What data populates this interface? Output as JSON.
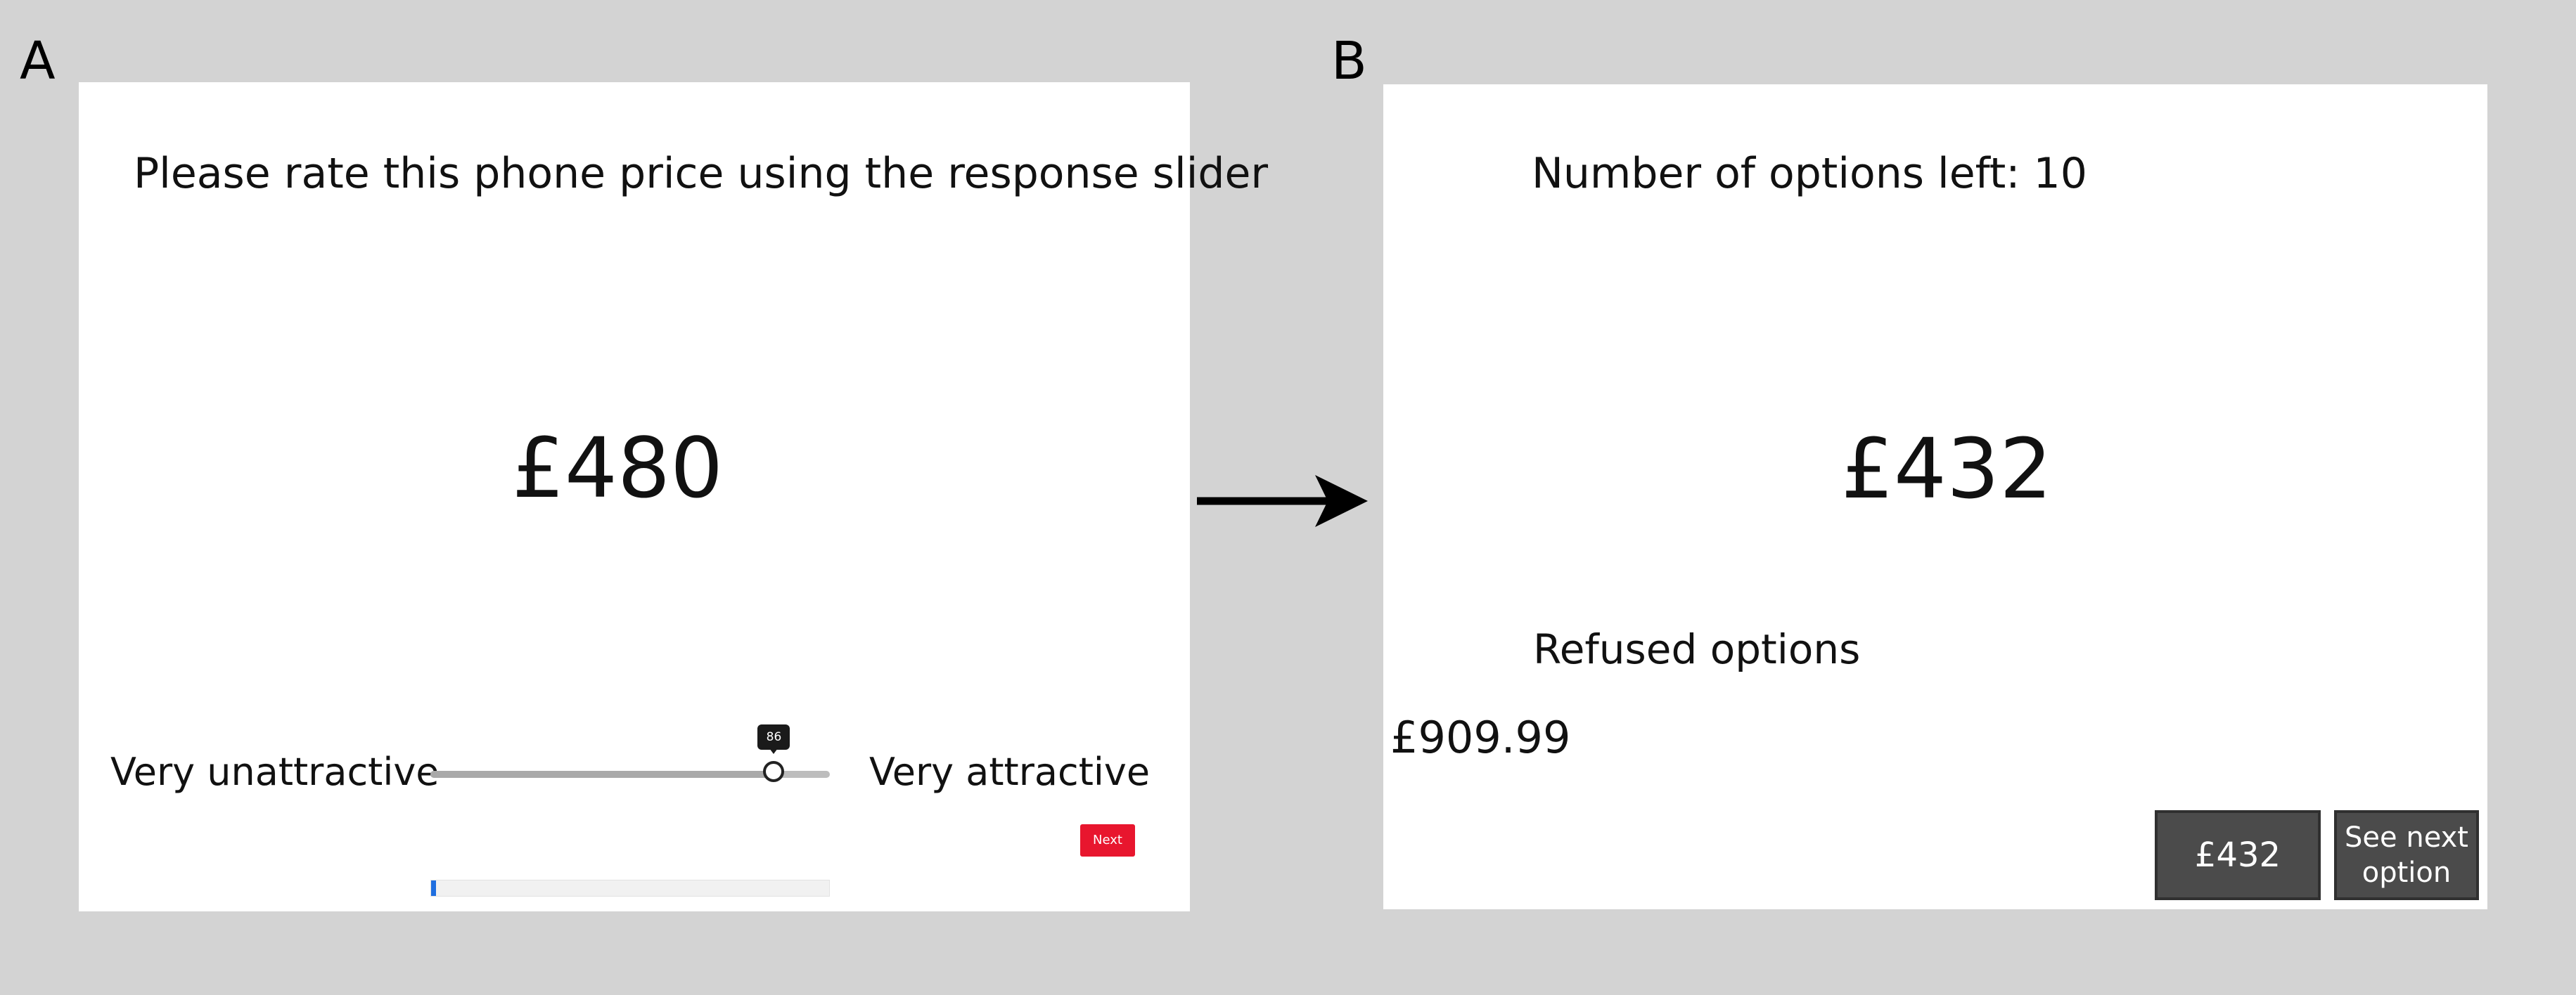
{
  "panels": {
    "a": {
      "letter": "A",
      "prompt": "Please rate this phone price using the response slider",
      "price": "£480",
      "slider": {
        "min_label": "Very unattractive",
        "max_label": "Very attractive",
        "value": 86,
        "value_label": "86",
        "min": 0,
        "max": 100
      },
      "next_label": "Next",
      "progress_fraction": 0.012,
      "next_color": "#e8162e",
      "progress_color": "#1f6fe0"
    },
    "b": {
      "letter": "B",
      "options_left": "Number of options left: 10",
      "price": "£432",
      "refused_heading": "Refused options",
      "refused_items": [
        "£909.99"
      ],
      "accept_label": "£432",
      "next_option_label": "See next\noption",
      "button_color": "#4b4b4b"
    }
  },
  "icons": {
    "transition": "right-arrow-icon"
  }
}
